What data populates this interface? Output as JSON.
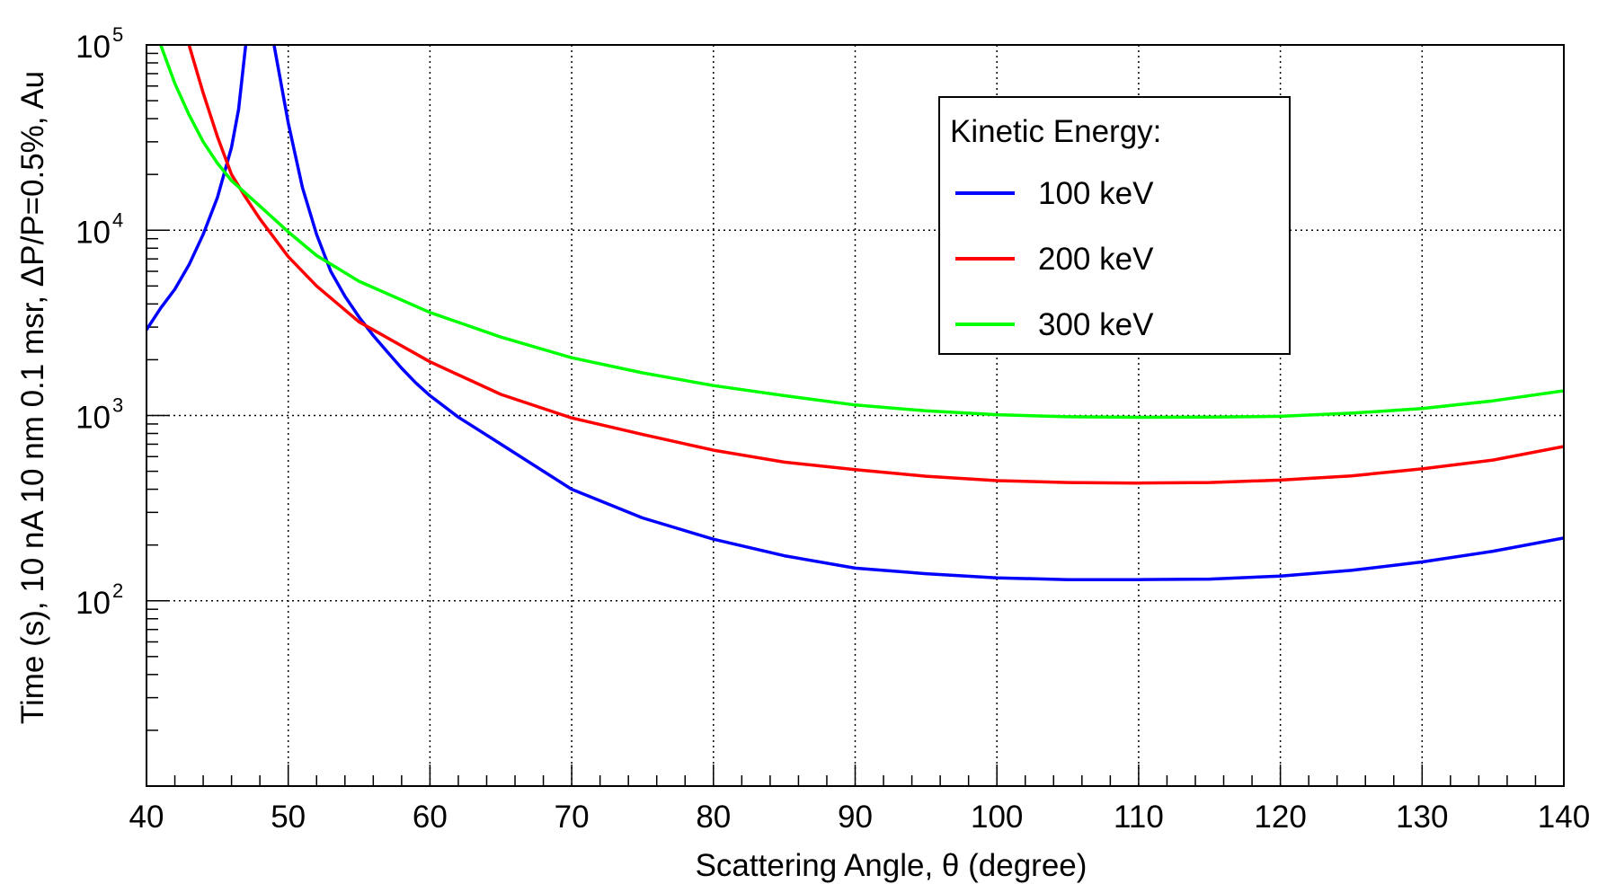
{
  "chart_data": {
    "type": "line",
    "xlabel": "Scattering Angle, θ (degree)",
    "ylabel": "Time (s), 10 nA 10 nm 0.1 msr, ΔP/P=0.5%, Au",
    "xlim": [
      40,
      140
    ],
    "ylim": [
      10,
      100000
    ],
    "y_scale": "log",
    "grid": true,
    "x_ticks": [
      40,
      50,
      60,
      70,
      80,
      90,
      100,
      110,
      120,
      130,
      140
    ],
    "x_tick_labels": [
      "40",
      "50",
      "60",
      "70",
      "80",
      "90",
      "100",
      "110",
      "120",
      "130",
      "140"
    ],
    "y_ticks": [
      100,
      1000,
      10000,
      100000
    ],
    "y_tick_labels": [
      {
        "base": "10",
        "exp": "2"
      },
      {
        "base": "10",
        "exp": "3"
      },
      {
        "base": "10",
        "exp": "4"
      },
      {
        "base": "10",
        "exp": "5"
      }
    ],
    "legend": {
      "title": "Kinetic Energy:",
      "placement": "top-right"
    },
    "series": [
      {
        "name": "100 keV",
        "color": "#0000ff",
        "segments": [
          [
            [
              40,
              2900
            ],
            [
              41,
              3800
            ],
            [
              42,
              4800
            ],
            [
              43,
              6500
            ],
            [
              44,
              9500
            ],
            [
              45,
              15000
            ],
            [
              46,
              28000
            ],
            [
              46.5,
              45000
            ],
            [
              47,
              100000
            ]
          ],
          [
            [
              49,
              100000
            ],
            [
              50,
              38000
            ],
            [
              51,
              17000
            ],
            [
              52,
              9500
            ],
            [
              53,
              6000
            ],
            [
              54,
              4400
            ],
            [
              55,
              3400
            ],
            [
              56,
              2700
            ],
            [
              57,
              2200
            ],
            [
              58,
              1800
            ],
            [
              59,
              1500
            ],
            [
              60,
              1280
            ],
            [
              62,
              980
            ],
            [
              65,
              700
            ],
            [
              70,
              400
            ],
            [
              75,
              280
            ],
            [
              80,
              215
            ],
            [
              85,
              175
            ],
            [
              90,
              150
            ],
            [
              95,
              140
            ],
            [
              100,
              133
            ],
            [
              105,
              130
            ],
            [
              110,
              130
            ],
            [
              115,
              131
            ],
            [
              120,
              136
            ],
            [
              125,
              146
            ],
            [
              130,
              162
            ],
            [
              135,
              185
            ],
            [
              140,
              218
            ]
          ]
        ]
      },
      {
        "name": "200 keV",
        "color": "#ff0000",
        "segments": [
          [
            [
              43,
              100000
            ],
            [
              44,
              55000
            ],
            [
              45,
              32000
            ],
            [
              46,
              20000
            ],
            [
              47,
              15000
            ],
            [
              48,
              11500
            ],
            [
              50,
              7200
            ],
            [
              52,
              5000
            ],
            [
              55,
              3200
            ],
            [
              60,
              1950
            ],
            [
              65,
              1300
            ],
            [
              70,
              970
            ],
            [
              75,
              790
            ],
            [
              80,
              650
            ],
            [
              85,
              560
            ],
            [
              90,
              510
            ],
            [
              95,
              470
            ],
            [
              100,
              445
            ],
            [
              105,
              435
            ],
            [
              110,
              432
            ],
            [
              115,
              435
            ],
            [
              120,
              448
            ],
            [
              125,
              472
            ],
            [
              130,
              515
            ],
            [
              135,
              575
            ],
            [
              140,
              680
            ]
          ]
        ]
      },
      {
        "name": "300 keV",
        "color": "#00ff00",
        "segments": [
          [
            [
              41,
              100000
            ],
            [
              42,
              62000
            ],
            [
              43,
              42000
            ],
            [
              44,
              30000
            ],
            [
              45,
              23000
            ],
            [
              46,
              18500
            ],
            [
              48,
              13500
            ],
            [
              50,
              9800
            ],
            [
              52,
              7300
            ],
            [
              55,
              5300
            ],
            [
              60,
              3600
            ],
            [
              65,
              2650
            ],
            [
              70,
              2050
            ],
            [
              75,
              1700
            ],
            [
              80,
              1450
            ],
            [
              85,
              1280
            ],
            [
              90,
              1140
            ],
            [
              95,
              1060
            ],
            [
              100,
              1010
            ],
            [
              105,
              985
            ],
            [
              110,
              978
            ],
            [
              115,
              980
            ],
            [
              120,
              990
            ],
            [
              125,
              1030
            ],
            [
              130,
              1090
            ],
            [
              135,
              1200
            ],
            [
              140,
              1360
            ]
          ]
        ]
      }
    ]
  }
}
